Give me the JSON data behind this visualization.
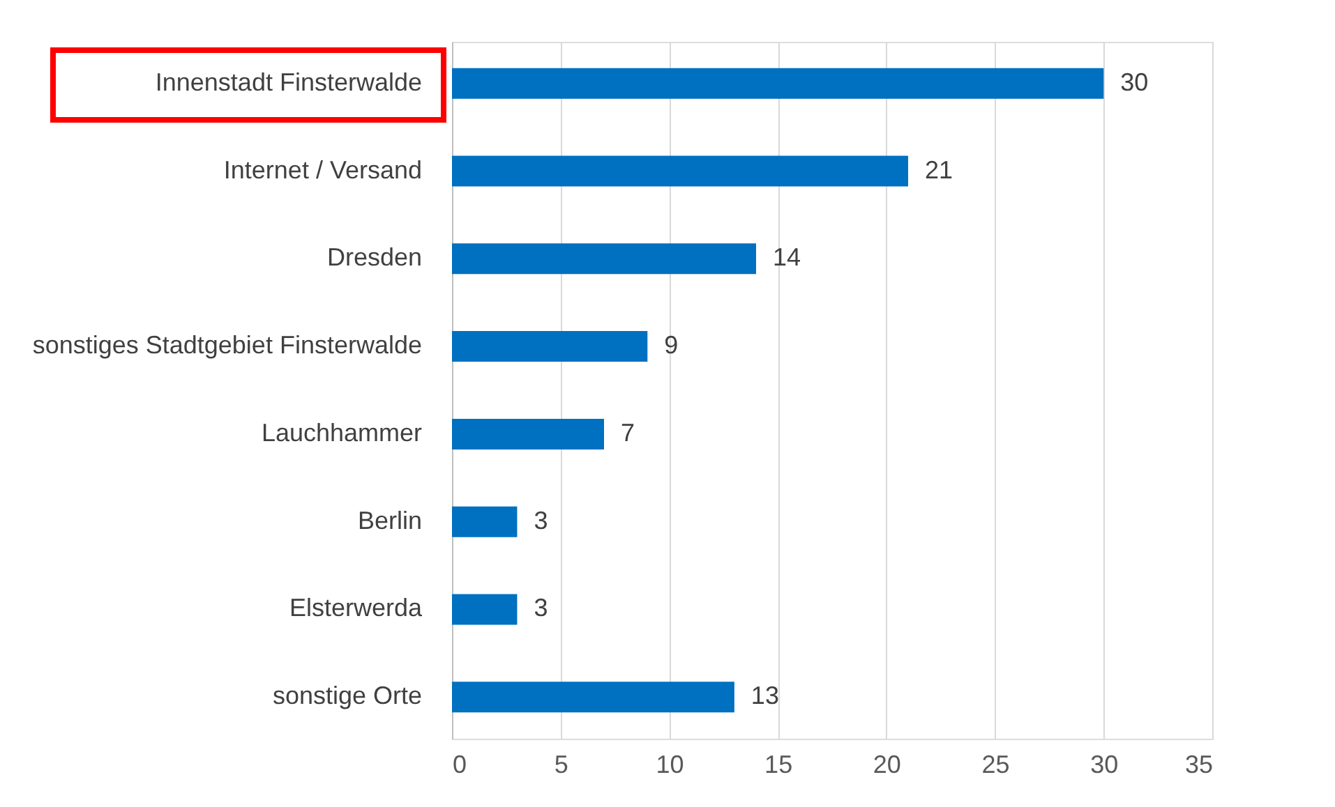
{
  "chart_data": {
    "type": "bar",
    "orientation": "horizontal",
    "categories": [
      "Innenstadt Finsterwalde",
      "Internet / Versand",
      "Dresden",
      "sonstiges Stadtgebiet Finsterwalde",
      "Lauchhammer",
      "Berlin",
      "Elsterwerda",
      "sonstige Orte"
    ],
    "values": [
      30,
      21,
      14,
      9,
      7,
      3,
      3,
      13
    ],
    "color": "#0070c0",
    "xlim": [
      0,
      35
    ],
    "xticks": [
      0,
      5,
      10,
      15,
      20,
      25,
      30,
      35
    ],
    "grid": "x",
    "data_labels": true
  }
}
